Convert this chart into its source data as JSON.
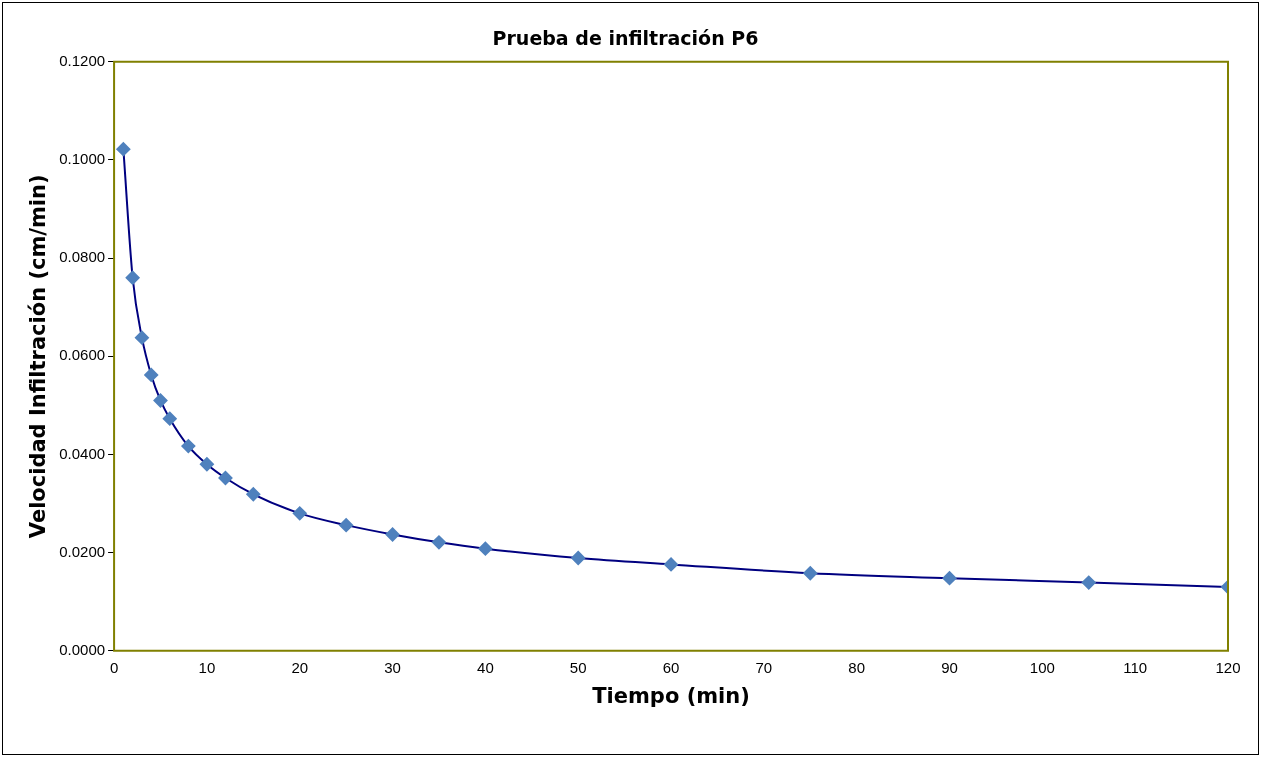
{
  "chart_data": {
    "type": "line",
    "title": "Prueba de infiltración P6",
    "xlabel": "Tiempo (min)",
    "ylabel": "Velocidad Infiltración (cm/min)",
    "x": [
      1,
      2,
      3,
      4,
      5,
      6,
      8,
      10,
      12,
      15,
      20,
      25,
      30,
      35,
      40,
      50,
      60,
      75,
      90,
      105,
      120
    ],
    "series": [
      {
        "color": "#000080",
        "values": [
          0.1022,
          0.076,
          0.0638,
          0.0562,
          0.051,
          0.0473,
          0.0417,
          0.038,
          0.0352,
          0.0319,
          0.028,
          0.0256,
          0.0237,
          0.0221,
          0.0208,
          0.0189,
          0.0176,
          0.0158,
          0.0148,
          0.0139,
          0.013
        ]
      }
    ],
    "xlim": [
      0,
      120
    ],
    "xticks": [
      0,
      10,
      20,
      30,
      40,
      50,
      60,
      70,
      80,
      90,
      100,
      110,
      120
    ],
    "ylim": [
      0,
      0.12
    ],
    "yticks": [
      {
        "value": 0,
        "label": "0.0000"
      },
      {
        "value": 0.02,
        "label": "0.0200"
      },
      {
        "value": 0.04,
        "label": "0.0400"
      },
      {
        "value": 0.06,
        "label": "0.0600"
      },
      {
        "value": 0.08,
        "label": "0.0800"
      },
      {
        "value": 0.1,
        "label": "0.1000"
      },
      {
        "value": 0.12,
        "label": "0.1200"
      }
    ],
    "grid": false,
    "legend": false,
    "marker": "diamond",
    "line_style": "solid"
  }
}
